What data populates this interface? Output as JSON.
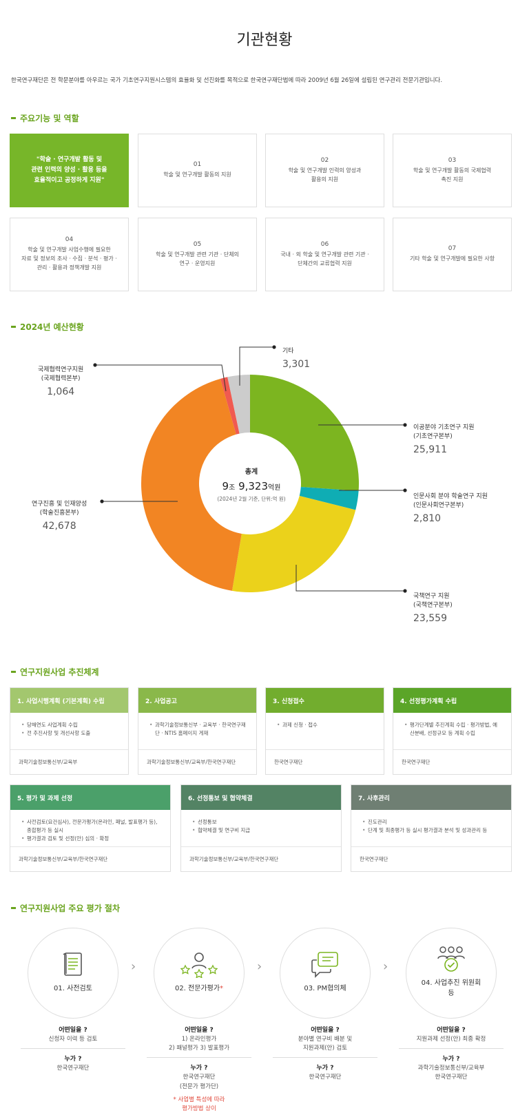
{
  "page_title": "기관현황",
  "intro": "한국연구재단은 전 학문분야를 아우르는 국가 기초연구지원시스템의 효율화 및 선진화를 목적으로 한국연구재단법에 따라 2009년 6월 26일에 설립된 연구관리 전문기관입니다.",
  "sections": {
    "functions": "주요기능 및 역할",
    "budget": "2024년 예산현황",
    "system": "연구지원사업 추진체계",
    "procedure": "연구지원사업 주요 평가 절차"
  },
  "functions": {
    "slogan": "\"학술 · 연구개발 활동 및\n관련 인력의 양성 · 활용 등을\n효율적이고 공정하게 지원\"",
    "items": [
      {
        "num": "01",
        "text": "학술 및 연구개발 활동의 지원"
      },
      {
        "num": "02",
        "text": "학술 및 연구개발 인력의 양성과\n활용의 지원"
      },
      {
        "num": "03",
        "text": "학술 및 연구개발 활동의 국제협력\n촉진 지원"
      },
      {
        "num": "04",
        "text": "학술 및 연구개발 사업수행에 필요한\n자료 및 정보의 조사 · 수집 · 분석 · 평가 ·\n관리 · 활용과 정책개발 지원"
      },
      {
        "num": "05",
        "text": "학술 및 연구개발 관련 기관 · 단체의\n연구 · 운영지원"
      },
      {
        "num": "06",
        "text": "국내 · 외 학술 및 연구개발 관련 기관 ·\n단체간의 교류협력 지원"
      },
      {
        "num": "07",
        "text": "기타 학술 및 연구개발에 필요한 사항"
      }
    ]
  },
  "chart_data": {
    "type": "pie",
    "unit": "억 원",
    "total_label": "총계",
    "total_jo": "9",
    "total_jo_unit": "조",
    "total_eok": "9,323",
    "total_eok_unit": "억원",
    "total_note": "(2024년 2월 기준, 단위:억 원)",
    "slices": [
      {
        "label": "이공분야 기초연구 지원",
        "sub": "(기초연구본부)",
        "value": 25911,
        "display": "25,911",
        "color": "#7cb520"
      },
      {
        "label": "인문사회 분야 학술연구 지원",
        "sub": "(인문사회연구본부)",
        "value": 2810,
        "display": "2,810",
        "color": "#0fadb4"
      },
      {
        "label": "국책연구 지원",
        "sub": "(국책연구본부)",
        "value": 23559,
        "display": "23,559",
        "color": "#ebd21b"
      },
      {
        "label": "연구진흥 및 인재양성",
        "sub": "(학술진흥본부)",
        "value": 42678,
        "display": "42,678",
        "color": "#f28523"
      },
      {
        "label": "국제협력연구지원",
        "sub": "(국제협력본부)",
        "value": 1064,
        "display": "1,064",
        "color": "#f05a50"
      },
      {
        "label": "기타",
        "sub": "",
        "value": 3301,
        "display": "3,301",
        "color": "#cccccc"
      }
    ]
  },
  "steps": [
    {
      "title": "1. 사업시행계획 (기본계획) 수립",
      "color": "#a3c76e",
      "items": [
        "당해연도 사업계획 수립",
        "전 추진사항 및 개선사항 도출"
      ],
      "org": "과학기술정보통신부/교육부"
    },
    {
      "title": "2. 사업공고",
      "color": "#8ab84a",
      "items": [
        "과학기술정보통신부 · 교육부 · 한국연구재단 · NTIS 홈페이지 게재"
      ],
      "org": "과학기술정보통신부/교육부/한국연구재단"
    },
    {
      "title": "3. 신청접수",
      "color": "#72ad2e",
      "items": [
        "과제 신청 · 접수"
      ],
      "org": "한국연구재단"
    },
    {
      "title": "4. 선정평가계획 수립",
      "color": "#5ba528",
      "items": [
        "평가단계별 추진계획 수립 · 평가방법, 예산분배, 선정규모 등 계획 수립"
      ],
      "org": "한국연구재단"
    },
    {
      "title": "5. 평가 및 과제 선정",
      "color": "#4ba06a",
      "items": [
        "사전검토(요건심사), 전문가평가(온라인, 패널, 발표평가 등), 종합평가 등 실시",
        "평가결과 검토 및 선정(안) 심의 · 확정"
      ],
      "org": "과학기술정보통신부/교육부/한국연구재단"
    },
    {
      "title": "6. 선정통보 및 협약체결",
      "color": "#538364",
      "items": [
        "선정통보",
        "협약체결 및 연구비 지급"
      ],
      "org": "과학기술정보통신부/교육부/한국연구재단"
    },
    {
      "title": "7. 사후관리",
      "color": "#6f7f73",
      "items": [
        "진도관리",
        "단계 및 최종평가 등 실시 평가결과 분석 및 성과관리 등"
      ],
      "org": "한국연구재단"
    }
  ],
  "procedure": {
    "what_label": "어떤일을 ?",
    "who_label": "누가 ?",
    "steps": [
      {
        "title": "01. 사전검토",
        "star": "",
        "icon": "document-list-icon",
        "what": "신청자 이력 등 검토",
        "who": "한국연구재단",
        "note": ""
      },
      {
        "title": "02. 전문가평가",
        "star": "*",
        "icon": "expert-stars-icon",
        "what": "1) 온라인평가\n2) 패널평가 3) 발표평가",
        "who": "한국연구재단\n(전문가 평가단)",
        "note": "* 사업별 특성에 따라\n평가방법 상이"
      },
      {
        "title": "03. PM협의체",
        "star": "",
        "icon": "chat-bubbles-icon",
        "what": "분야별 연구비 배분 및\n지원과제(안) 검토",
        "who": "한국연구재단",
        "note": ""
      },
      {
        "title": "04. 사업추진 위원회\n등",
        "star": "",
        "icon": "committee-check-icon",
        "what": "지원과제 선정(안) 최종 확정",
        "who": "과학기술정보통신부/교육부\n한국연구재단",
        "note": ""
      }
    ]
  }
}
